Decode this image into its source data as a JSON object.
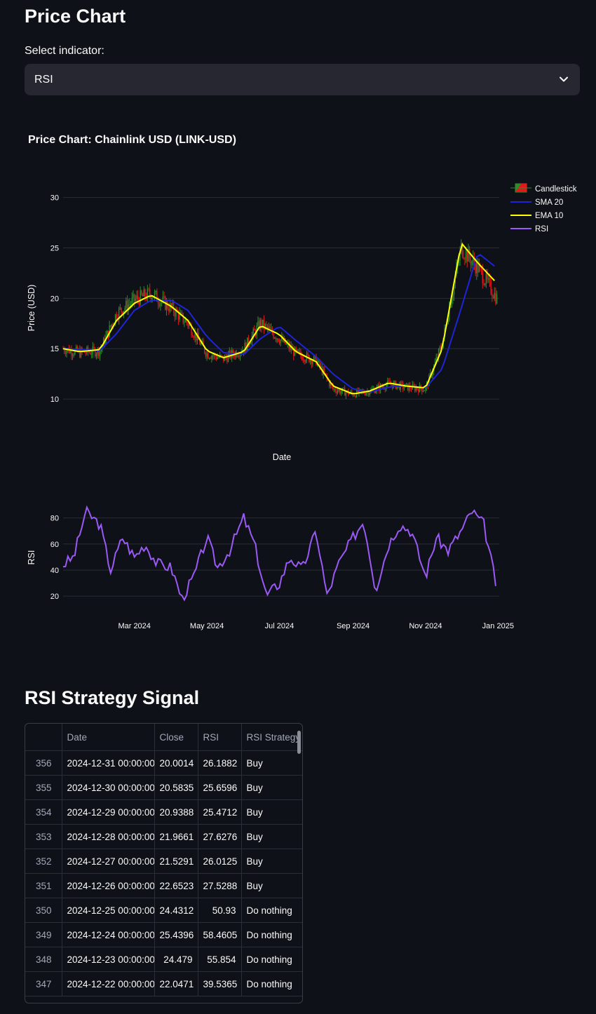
{
  "page": {
    "title": "Price Chart",
    "select_label": "Select indicator:",
    "select_value": "RSI"
  },
  "icons": {
    "select_chevron": "chevron-down-icon"
  },
  "colors": {
    "background": "#0e1117",
    "candle_up": "#2e8b2e",
    "candle_down": "#e01a1a",
    "sma": "#1f24d6",
    "ema": "#ffff00",
    "rsi": "#9b59f5"
  },
  "chart_data": [
    {
      "type": "candlestick",
      "title": "Price Chart: Chainlink USD (LINK-USD)",
      "xlabel": "Date",
      "ylabel": "Price (USD)",
      "ylim": [
        7.5,
        31.5
      ],
      "yticks": [
        10,
        15,
        20,
        25,
        30
      ],
      "xlim": [
        "2024-01-01",
        "2025-01-02"
      ],
      "grid": true,
      "legend": {
        "placement": "top-right",
        "entries": [
          "Candlestick",
          "SMA 20",
          "EMA 10",
          "RSI"
        ]
      },
      "x": [
        "2024-01-01",
        "2024-01-15",
        "2024-02-01",
        "2024-02-15",
        "2024-03-01",
        "2024-03-15",
        "2024-04-01",
        "2024-04-15",
        "2024-05-01",
        "2024-05-15",
        "2024-06-01",
        "2024-06-15",
        "2024-07-01",
        "2024-07-15",
        "2024-08-01",
        "2024-08-15",
        "2024-09-01",
        "2024-09-15",
        "2024-10-01",
        "2024-10-15",
        "2024-11-01",
        "2024-11-15",
        "2024-12-01",
        "2024-12-15",
        "2024-12-31"
      ],
      "series": [
        {
          "name": "Candlestick",
          "close": [
            15.0,
            14.6,
            14.8,
            18.5,
            19.8,
            20.5,
            19.0,
            17.5,
            14.5,
            14.0,
            15.0,
            17.5,
            16.0,
            14.5,
            13.8,
            11.0,
            10.5,
            10.8,
            11.5,
            11.2,
            11.0,
            15.5,
            25.0,
            23.0,
            20.0
          ]
        },
        {
          "name": "SMA 20",
          "values": [
            15.0,
            14.9,
            14.8,
            16.5,
            18.8,
            19.8,
            19.8,
            18.8,
            16.2,
            14.6,
            14.4,
            16.0,
            17.2,
            15.8,
            14.2,
            12.5,
            11.0,
            10.7,
            11.2,
            11.3,
            11.1,
            13.0,
            19.0,
            24.5,
            23.0
          ]
        },
        {
          "name": "EMA 10",
          "values": [
            15.0,
            14.7,
            14.9,
            17.8,
            19.5,
            20.3,
            19.2,
            17.8,
            14.8,
            14.1,
            14.7,
            17.3,
            16.4,
            14.7,
            13.7,
            11.3,
            10.5,
            10.8,
            11.6,
            11.3,
            11.1,
            15.0,
            25.5,
            23.5,
            21.5
          ]
        }
      ]
    },
    {
      "type": "line",
      "ylabel": "RSI",
      "ylim": [
        12,
        90
      ],
      "yticks": [
        20,
        40,
        60,
        80
      ],
      "x_tick_labels": [
        "Mar 2024",
        "May 2024",
        "Jul 2024",
        "Sep 2024",
        "Nov 2024",
        "Jan 2025"
      ],
      "x_tick_dates": [
        "2024-03-01",
        "2024-05-01",
        "2024-07-01",
        "2024-09-01",
        "2024-11-01",
        "2025-01-01"
      ],
      "series": [
        {
          "name": "RSI",
          "x": [
            "2024-01-01",
            "2024-01-10",
            "2024-01-20",
            "2024-02-01",
            "2024-02-10",
            "2024-02-20",
            "2024-03-01",
            "2024-03-10",
            "2024-03-20",
            "2024-04-01",
            "2024-04-10",
            "2024-04-20",
            "2024-05-01",
            "2024-05-10",
            "2024-05-20",
            "2024-06-01",
            "2024-06-10",
            "2024-06-20",
            "2024-07-01",
            "2024-07-10",
            "2024-07-20",
            "2024-08-01",
            "2024-08-10",
            "2024-08-20",
            "2024-09-01",
            "2024-09-10",
            "2024-09-20",
            "2024-10-01",
            "2024-10-10",
            "2024-10-20",
            "2024-11-01",
            "2024-11-10",
            "2024-11-20",
            "2024-12-01",
            "2024-12-10",
            "2024-12-20",
            "2024-12-31"
          ],
          "values": [
            44,
            50,
            85,
            75,
            40,
            65,
            50,
            60,
            45,
            42,
            18,
            35,
            65,
            42,
            55,
            80,
            60,
            20,
            30,
            50,
            40,
            70,
            20,
            45,
            65,
            78,
            25,
            60,
            75,
            70,
            35,
            65,
            55,
            70,
            85,
            75,
            26
          ]
        }
      ]
    }
  ],
  "table": {
    "title": "RSI Strategy Signal",
    "columns": [
      "",
      "Date",
      "Close",
      "RSI",
      "RSI Strategy"
    ],
    "rows": [
      [
        "356",
        "2024-12-31 00:00:00",
        "20.0014",
        "26.1882",
        "Buy"
      ],
      [
        "355",
        "2024-12-30 00:00:00",
        "20.5835",
        "25.6596",
        "Buy"
      ],
      [
        "354",
        "2024-12-29 00:00:00",
        "20.9388",
        "25.4712",
        "Buy"
      ],
      [
        "353",
        "2024-12-28 00:00:00",
        "21.9661",
        "27.6276",
        "Buy"
      ],
      [
        "352",
        "2024-12-27 00:00:00",
        "21.5291",
        "26.0125",
        "Buy"
      ],
      [
        "351",
        "2024-12-26 00:00:00",
        "22.6523",
        "27.5288",
        "Buy"
      ],
      [
        "350",
        "2024-12-25 00:00:00",
        "24.4312",
        "50.93",
        "Do nothing"
      ],
      [
        "349",
        "2024-12-24 00:00:00",
        "25.4396",
        "58.4605",
        "Do nothing"
      ],
      [
        "348",
        "2024-12-23 00:00:00",
        "24.479",
        "55.854",
        "Do nothing"
      ],
      [
        "347",
        "2024-12-22 00:00:00",
        "22.0471",
        "39.5365",
        "Do nothing"
      ]
    ]
  }
}
